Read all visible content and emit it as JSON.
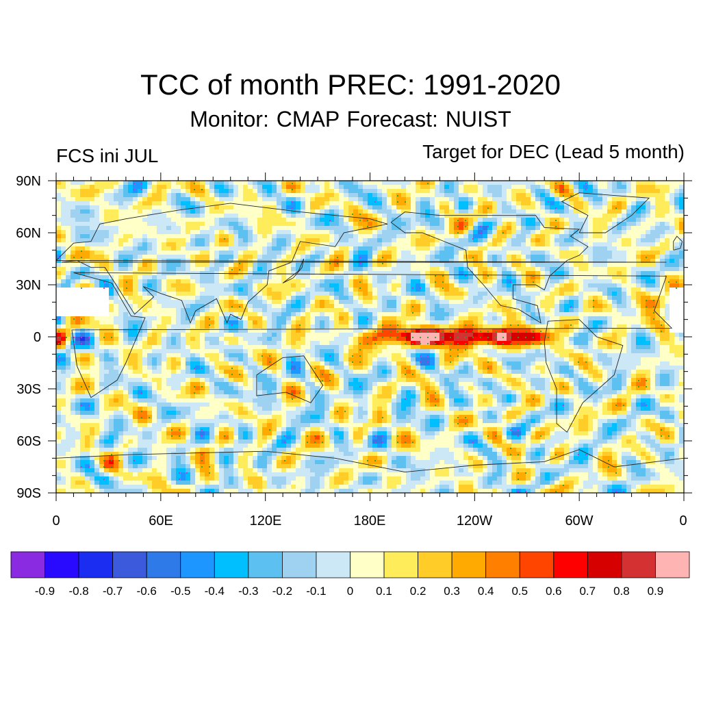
{
  "title": "TCC of month PREC: 1991-2020",
  "subtitle": "Monitor: CMAP   Forecast: NUIST",
  "left_label": "FCS ini JUL",
  "right_label": "Target for DEC (Lead 5 month)",
  "lat_ticks": [
    "90N",
    "60N",
    "30N",
    "0",
    "30S",
    "60S",
    "90S"
  ],
  "lon_ticks": [
    "0",
    "60E",
    "120E",
    "180E",
    "120W",
    "60W",
    "0"
  ],
  "colorbar": {
    "colors": [
      "#8a2be2",
      "#2a0aff",
      "#1a2df0",
      "#3c5bdc",
      "#2d7ae8",
      "#1e96ff",
      "#00bfff",
      "#5cc0f0",
      "#9fd2f0",
      "#cce8f7",
      "#ffffc8",
      "#ffec5a",
      "#ffcc28",
      "#ffaa00",
      "#ff7f00",
      "#ff4500",
      "#ff0000",
      "#d70000",
      "#d43232",
      "#ffb4b4"
    ],
    "labels": [
      "-0.9",
      "-0.8",
      "-0.7",
      "-0.6",
      "-0.5",
      "-0.4",
      "-0.3",
      "-0.2",
      "-0.1",
      "0",
      "0.1",
      "0.2",
      "0.3",
      "0.4",
      "0.5",
      "0.6",
      "0.7",
      "0.8",
      "0.9"
    ]
  }
}
